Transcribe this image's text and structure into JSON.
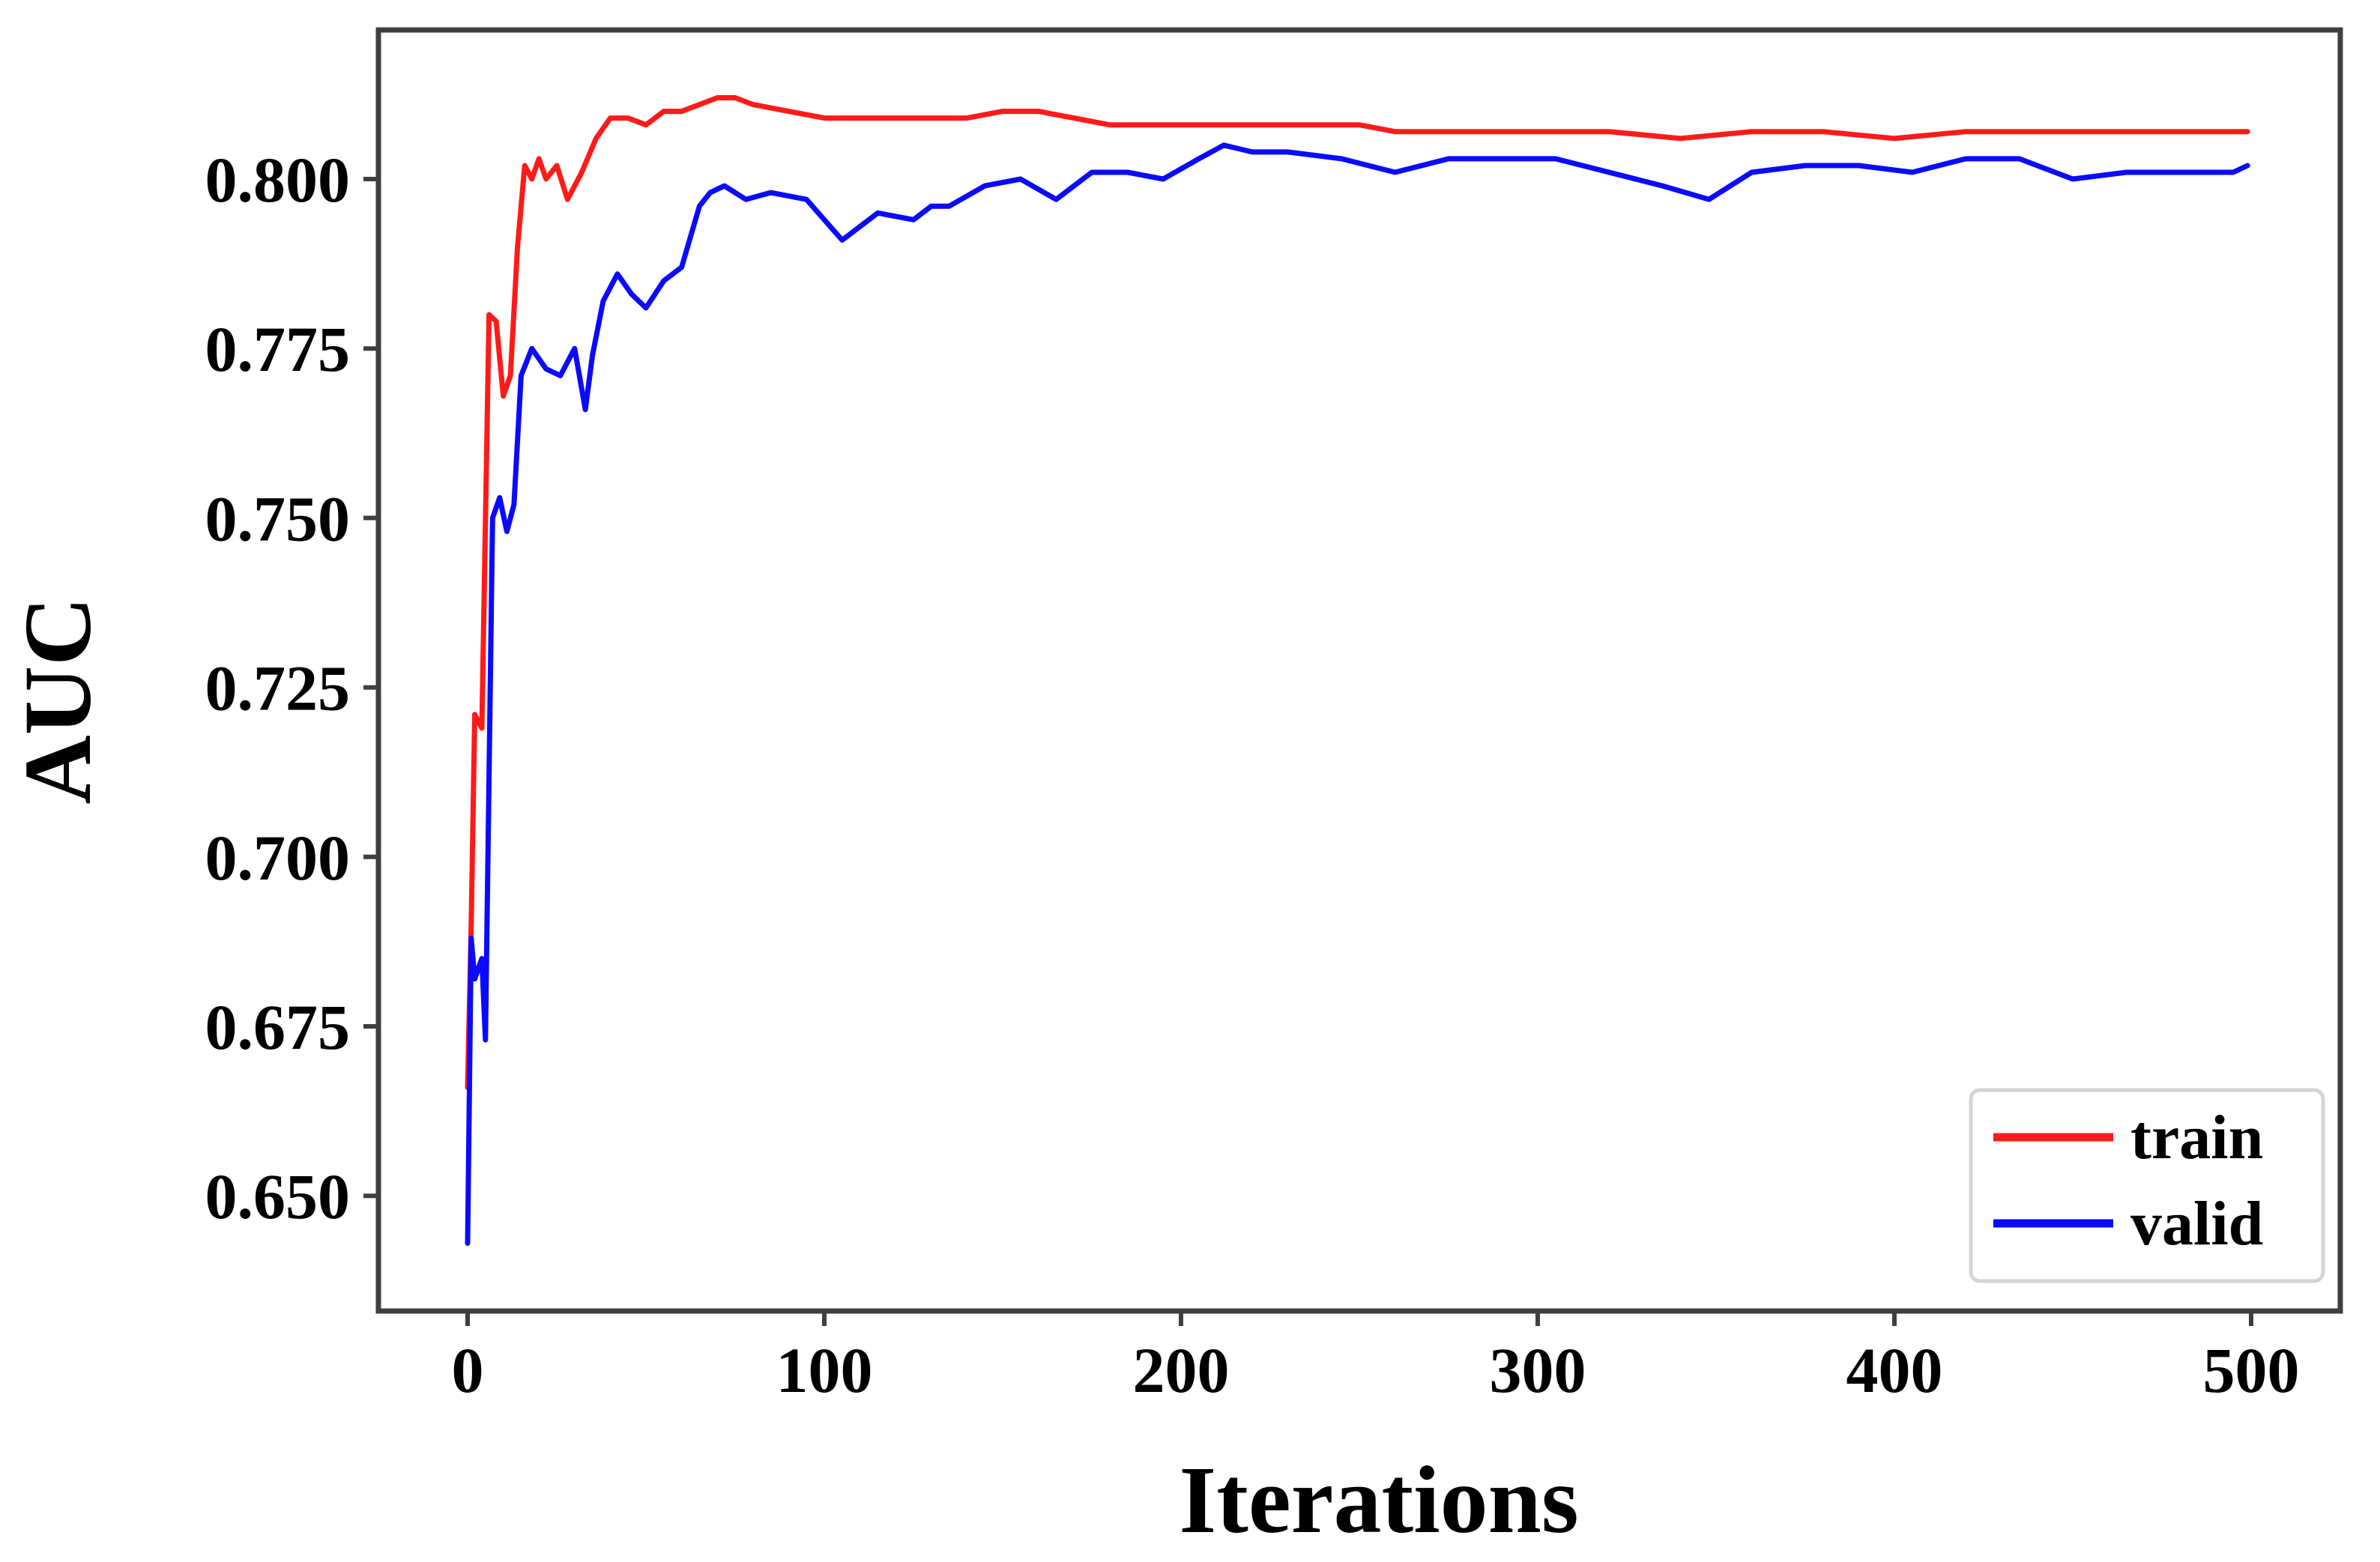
{
  "chart_data": {
    "type": "line",
    "title": "",
    "xlabel": "Iterations",
    "ylabel": "AUC",
    "xlim": [
      -25,
      525
    ],
    "ylim": [
      0.633,
      0.822
    ],
    "xticks": [
      0,
      100,
      200,
      300,
      400,
      500
    ],
    "xtick_labels": [
      "0",
      "100",
      "200",
      "300",
      "400",
      "500"
    ],
    "yticks": [
      0.65,
      0.675,
      0.7,
      0.725,
      0.75,
      0.775,
      0.8
    ],
    "ytick_labels": [
      "0.650",
      "0.675",
      "0.700",
      "0.725",
      "0.750",
      "0.775",
      "0.800"
    ],
    "grid": false,
    "legend_position": "lower-right",
    "series": [
      {
        "name": "train",
        "color": "#ff1a1a",
        "x": [
          0,
          1,
          2,
          4,
          6,
          8,
          10,
          12,
          14,
          16,
          18,
          20,
          22,
          25,
          28,
          32,
          36,
          40,
          45,
          50,
          55,
          60,
          65,
          70,
          75,
          80,
          90,
          100,
          110,
          125,
          140,
          150,
          160,
          170,
          180,
          190,
          200,
          210,
          220,
          230,
          240,
          250,
          260,
          280,
          300,
          320,
          340,
          360,
          380,
          400,
          420,
          440,
          460,
          480,
          499
        ],
        "y": [
          0.666,
          0.69,
          0.721,
          0.719,
          0.78,
          0.779,
          0.768,
          0.771,
          0.79,
          0.802,
          0.8,
          0.803,
          0.8,
          0.802,
          0.797,
          0.801,
          0.806,
          0.809,
          0.809,
          0.808,
          0.81,
          0.81,
          0.811,
          0.812,
          0.812,
          0.811,
          0.81,
          0.809,
          0.809,
          0.809,
          0.809,
          0.81,
          0.81,
          0.809,
          0.808,
          0.808,
          0.808,
          0.808,
          0.808,
          0.808,
          0.808,
          0.808,
          0.807,
          0.807,
          0.807,
          0.807,
          0.806,
          0.807,
          0.807,
          0.806,
          0.807,
          0.807,
          0.807,
          0.807,
          0.807
        ]
      },
      {
        "name": "valid",
        "color": "#0a0aff",
        "x": [
          0,
          1,
          2,
          4,
          5,
          7,
          9,
          11,
          13,
          15,
          18,
          22,
          26,
          30,
          33,
          35,
          38,
          42,
          46,
          50,
          55,
          60,
          65,
          68,
          72,
          78,
          85,
          95,
          105,
          115,
          125,
          130,
          135,
          145,
          155,
          165,
          175,
          185,
          195,
          205,
          212,
          220,
          230,
          245,
          260,
          275,
          290,
          305,
          320,
          335,
          348,
          360,
          375,
          390,
          405,
          420,
          435,
          450,
          465,
          480,
          495,
          499
        ],
        "y": [
          0.643,
          0.688,
          0.682,
          0.685,
          0.673,
          0.75,
          0.753,
          0.748,
          0.752,
          0.771,
          0.775,
          0.772,
          0.771,
          0.775,
          0.766,
          0.774,
          0.782,
          0.786,
          0.783,
          0.781,
          0.785,
          0.787,
          0.796,
          0.798,
          0.799,
          0.797,
          0.798,
          0.797,
          0.791,
          0.795,
          0.794,
          0.796,
          0.796,
          0.799,
          0.8,
          0.797,
          0.801,
          0.801,
          0.8,
          0.803,
          0.805,
          0.804,
          0.804,
          0.803,
          0.801,
          0.803,
          0.803,
          0.803,
          0.801,
          0.799,
          0.797,
          0.801,
          0.802,
          0.802,
          0.801,
          0.803,
          0.803,
          0.8,
          0.801,
          0.801,
          0.801,
          0.802
        ]
      }
    ]
  }
}
